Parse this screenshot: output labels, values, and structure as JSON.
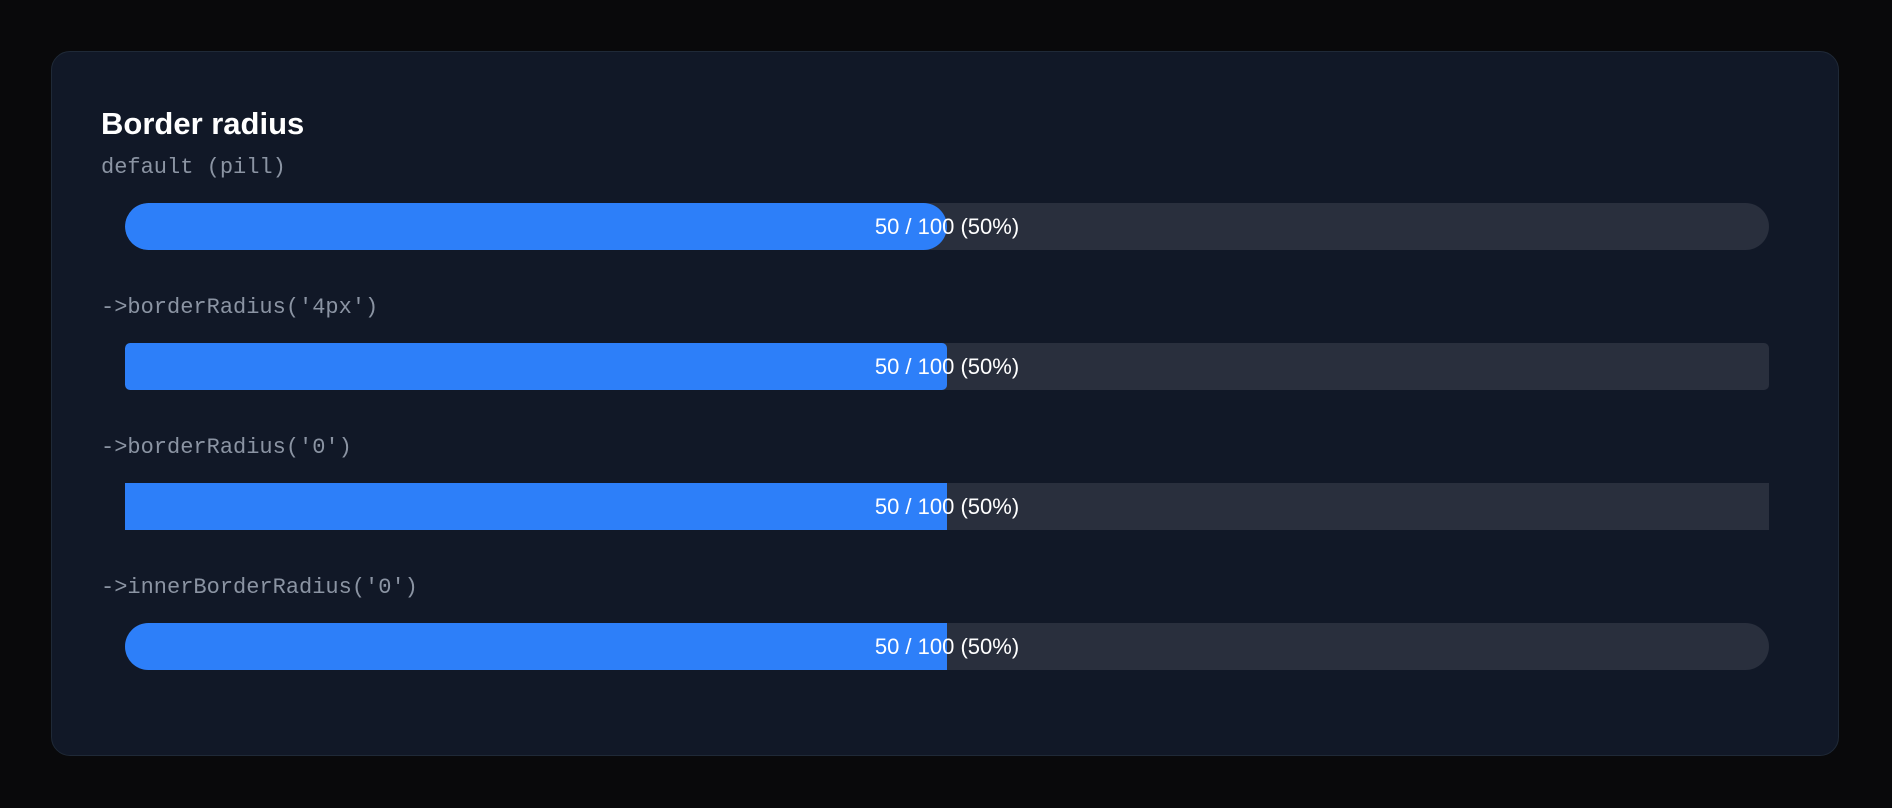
{
  "card": {
    "title": "Border radius",
    "rows": [
      {
        "label": "default (pill)",
        "value": 50,
        "max": 100,
        "value_label": "50 / 100 (50%)"
      },
      {
        "label": "->borderRadius('4px')",
        "value": 50,
        "max": 100,
        "value_label": "50 / 100 (50%)"
      },
      {
        "label": "->borderRadius('0')",
        "value": 50,
        "max": 100,
        "value_label": "50 / 100 (50%)"
      },
      {
        "label": "->innerBorderRadius('0')",
        "value": 50,
        "max": 100,
        "value_label": "50 / 100 (50%)"
      }
    ]
  }
}
